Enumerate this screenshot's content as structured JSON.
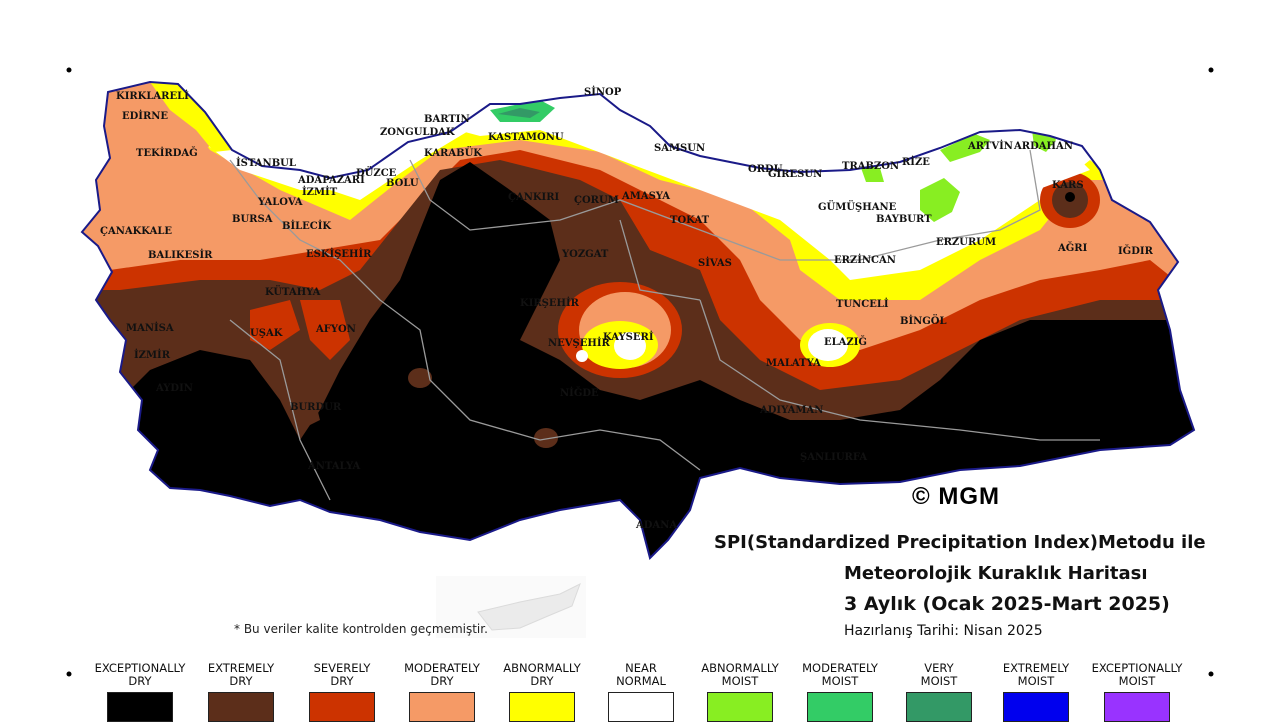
{
  "map": {
    "cities": [
      "KIRKLARELİ",
      "EDİRNE",
      "TEKİRDAĞ",
      "İSTANBUL",
      "ÇANAKKALE",
      "BALIKESİR",
      "BURSA",
      "YALOVA",
      "BİLECİK",
      "ESKİŞEHİR",
      "KÜTAHYA",
      "MANİSA",
      "İZMİR",
      "UŞAK",
      "AFYON",
      "AYDIN",
      "BURDUR",
      "ANTALYA",
      "ADAPAZARI",
      "İZMİT",
      "DÜZCE",
      "BOLU",
      "BARTIN",
      "ZONGULDAK",
      "KARABÜK",
      "KASTAMONU",
      "SİNOP",
      "ÇANKIRI",
      "ÇORUM",
      "AMASYA",
      "SAMSUN",
      "TOKAT",
      "YOZGAT",
      "SİVAS",
      "KIRŞEHİR",
      "KAYSERİ",
      "NEVŞEHİR",
      "NİĞDE",
      "ORDU",
      "GİRESUN",
      "TRABZON",
      "RİZE",
      "ARTVİN",
      "ARDAHAN",
      "GÜMÜŞHANE",
      "BAYBURT",
      "KARS",
      "ERZURUM",
      "AĞRI",
      "IĞDIR",
      "ERZİNCAN",
      "TUNCELİ",
      "BİNGÖL",
      "ELAZIĞ",
      "MALATYA",
      "ADIYAMAN",
      "ŞANLIURFA",
      "ADANA"
    ]
  },
  "copyright": "© MGM",
  "title": {
    "line1": "SPI(Standardized Precipitation Index)Metodu ile",
    "line2": "Meteorolojik Kuraklık Haritası",
    "line3": "3 Aylık (Ocak 2025-Mart 2025)",
    "line4": "Hazırlanış Tarihi: Nisan 2025"
  },
  "note": "* Bu veriler kalite kontrolden geçmemiştir.",
  "legend": [
    {
      "label_top": "EXCEPTIONALLY",
      "label_bottom": "DRY",
      "color": "#000000"
    },
    {
      "label_top": "EXTREMELY",
      "label_bottom": "DRY",
      "color": "#5c2e1a"
    },
    {
      "label_top": "SEVERELY",
      "label_bottom": "DRY",
      "color": "#cc3300"
    },
    {
      "label_top": "MODERATELY",
      "label_bottom": "DRY",
      "color": "#f59a66"
    },
    {
      "label_top": "ABNORMALLY",
      "label_bottom": "DRY",
      "color": "#ffff00"
    },
    {
      "label_top": "NEAR",
      "label_bottom": "NORMAL",
      "color": "#ffffff"
    },
    {
      "label_top": "ABNORMALLY",
      "label_bottom": "MOIST",
      "color": "#88ee22"
    },
    {
      "label_top": "MODERATELY",
      "label_bottom": "MOIST",
      "color": "#33cc66"
    },
    {
      "label_top": "VERY",
      "label_bottom": "MOIST",
      "color": "#339966"
    },
    {
      "label_top": "EXTREMELY",
      "label_bottom": "MOIST",
      "color": "#0000ee"
    },
    {
      "label_top": "EXCEPTIONALLY",
      "label_bottom": "MOIST",
      "color": "#9933ff"
    }
  ]
}
